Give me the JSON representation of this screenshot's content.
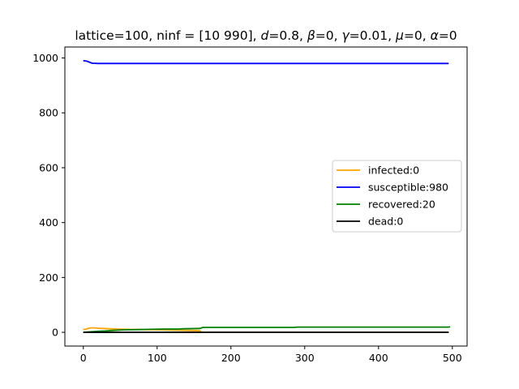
{
  "chart_data": {
    "type": "line",
    "title_parts": [
      {
        "text": "lattice=100, ninf = [10 990], ",
        "italic": false
      },
      {
        "text": "d",
        "italic": true
      },
      {
        "text": "=0.8, ",
        "italic": false
      },
      {
        "text": "β",
        "italic": true
      },
      {
        "text": "=0, ",
        "italic": false
      },
      {
        "text": "γ",
        "italic": true
      },
      {
        "text": "=0.01, ",
        "italic": false
      },
      {
        "text": "μ",
        "italic": true
      },
      {
        "text": "=0, ",
        "italic": false
      },
      {
        "text": "α",
        "italic": true
      },
      {
        "text": "=0",
        "italic": false
      }
    ],
    "xlabel": "",
    "ylabel": "",
    "xlim": [
      -25,
      520
    ],
    "ylim": [
      -50,
      1040
    ],
    "xticks": [
      0,
      100,
      200,
      300,
      400,
      500
    ],
    "yticks": [
      0,
      200,
      400,
      600,
      800,
      1000
    ],
    "grid": false,
    "legend": "center-right",
    "series": [
      {
        "name": "infected:0",
        "color": "#ffa500",
        "points": [
          [
            0,
            10
          ],
          [
            3,
            11
          ],
          [
            6,
            14
          ],
          [
            10,
            16
          ],
          [
            15,
            16
          ],
          [
            20,
            15
          ],
          [
            28,
            14
          ],
          [
            35,
            13
          ],
          [
            45,
            12
          ],
          [
            60,
            11
          ],
          [
            80,
            10
          ],
          [
            100,
            9
          ],
          [
            120,
            8
          ],
          [
            140,
            7
          ],
          [
            158,
            6
          ],
          [
            160,
            0
          ],
          [
            495,
            0
          ]
        ]
      },
      {
        "name": "susceptible:980",
        "color": "#0000ff",
        "points": [
          [
            0,
            990
          ],
          [
            4,
            989
          ],
          [
            8,
            985
          ],
          [
            12,
            981
          ],
          [
            20,
            980
          ],
          [
            495,
            980
          ]
        ]
      },
      {
        "name": "recovered:20",
        "color": "#008000",
        "points": [
          [
            0,
            0
          ],
          [
            10,
            2
          ],
          [
            20,
            4
          ],
          [
            30,
            5
          ],
          [
            40,
            7
          ],
          [
            55,
            9
          ],
          [
            75,
            10
          ],
          [
            90,
            11
          ],
          [
            110,
            12
          ],
          [
            130,
            12
          ],
          [
            135,
            13
          ],
          [
            158,
            14
          ],
          [
            162,
            18
          ],
          [
            200,
            18
          ],
          [
            285,
            18
          ],
          [
            290,
            19
          ],
          [
            330,
            19
          ],
          [
            495,
            19
          ],
          [
            497,
            20
          ]
        ]
      },
      {
        "name": "dead:0",
        "color": "#000000",
        "points": [
          [
            0,
            0
          ],
          [
            495,
            0
          ]
        ]
      }
    ]
  }
}
